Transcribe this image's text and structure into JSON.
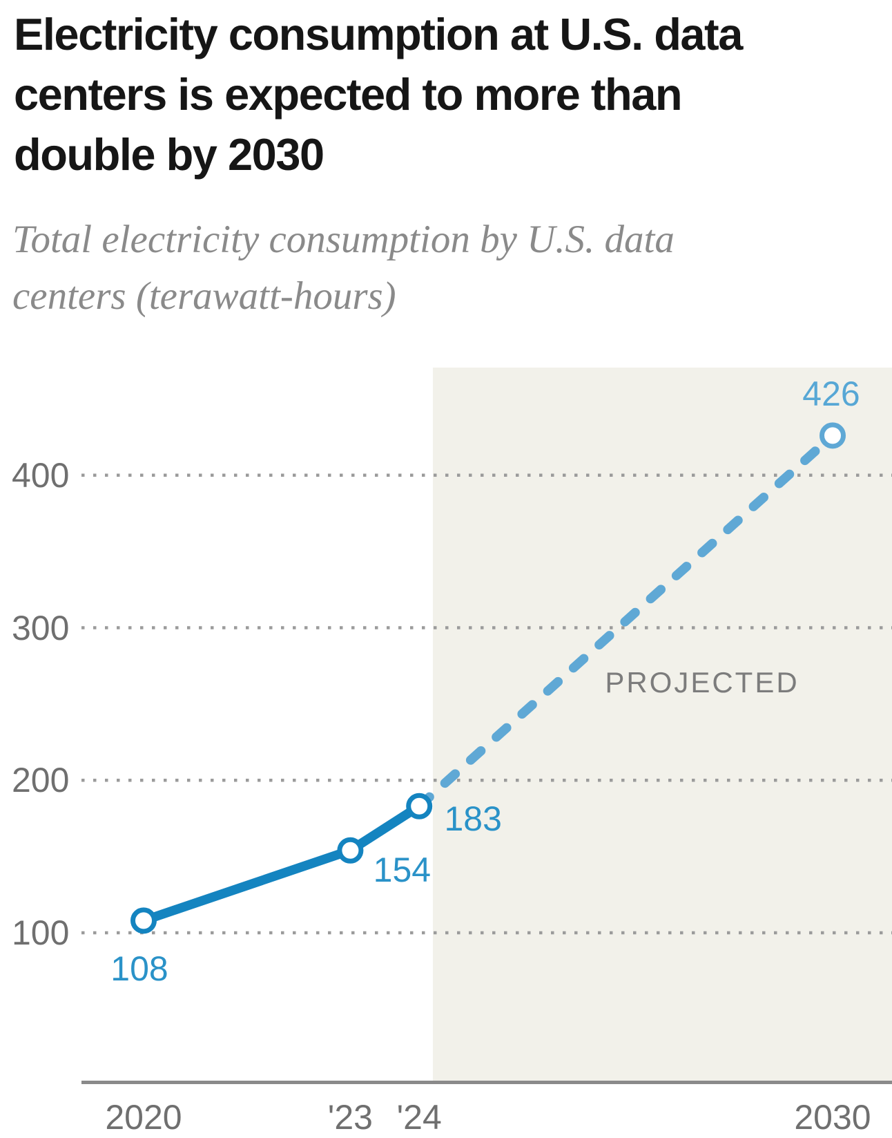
{
  "header": {
    "title": "Electricity consumption at U.S. data centers is expected to more than double by 2030",
    "title_lines": [
      "Electricity consumption at U.S. data",
      "centers is expected to more than",
      "double by 2030"
    ],
    "subtitle": "Total electricity consumption by U.S. data centers (terawatt-hours)",
    "subtitle_lines": [
      "Total electricity consumption by U.S. data",
      "centers (terawatt-hours)"
    ]
  },
  "chart_data": {
    "type": "line",
    "title": "Electricity consumption at U.S. data centers is expected to more than double by 2030",
    "ylabel": "Total electricity consumption by U.S. data centers (terawatt-hours)",
    "xlabel": "",
    "grid": "dotted-horizontal",
    "legend": "none",
    "xlim": [
      2019.1,
      2030.9
    ],
    "ylim": [
      0,
      470
    ],
    "yticks": [
      {
        "value": 100,
        "label": "100"
      },
      {
        "value": 200,
        "label": "200"
      },
      {
        "value": 300,
        "label": "300"
      },
      {
        "value": 400,
        "label": "400"
      }
    ],
    "xticks": [
      {
        "value": 2020,
        "label": "2020"
      },
      {
        "value": 2023,
        "label": "'23"
      },
      {
        "value": 2024,
        "label": "'24"
      },
      {
        "value": 2030,
        "label": "2030"
      }
    ],
    "series": [
      {
        "name": "actual",
        "style": "solid",
        "points": [
          {
            "year": 2020,
            "value": 108
          },
          {
            "year": 2023,
            "value": 154
          },
          {
            "year": 2024,
            "value": 183
          }
        ]
      },
      {
        "name": "projected",
        "style": "dashed",
        "points": [
          {
            "year": 2024,
            "value": 183
          },
          {
            "year": 2030,
            "value": 426
          }
        ]
      }
    ],
    "point_labels": [
      {
        "text": "108",
        "year": 2020,
        "value": 108,
        "placement": "below",
        "tone": "dark"
      },
      {
        "text": "154",
        "year": 2023,
        "value": 154,
        "placement": "below-right",
        "tone": "dark"
      },
      {
        "text": "183",
        "year": 2024,
        "value": 183,
        "placement": "right",
        "tone": "dark"
      },
      {
        "text": "426",
        "year": 2030,
        "value": 426,
        "placement": "above",
        "tone": "light"
      }
    ],
    "annotation": {
      "text": "PROJECTED"
    },
    "projection_region_start_year": 2024.2
  },
  "colors": {
    "actual_line": "#1484c0",
    "projected_line": "#5fa8d5",
    "label_dark": "#2a92c8",
    "label_light": "#57a7d5",
    "marker_fill": "#ffffff",
    "grid_dots": "#9b9b9b",
    "axis_line": "#8a8a8a",
    "tick_text": "#6f6f6f",
    "annotation_text": "#7c7c7c",
    "shade_bg": "#f2f1ea",
    "title_text": "#161616",
    "subtitle_text": "#8a8a8a"
  }
}
